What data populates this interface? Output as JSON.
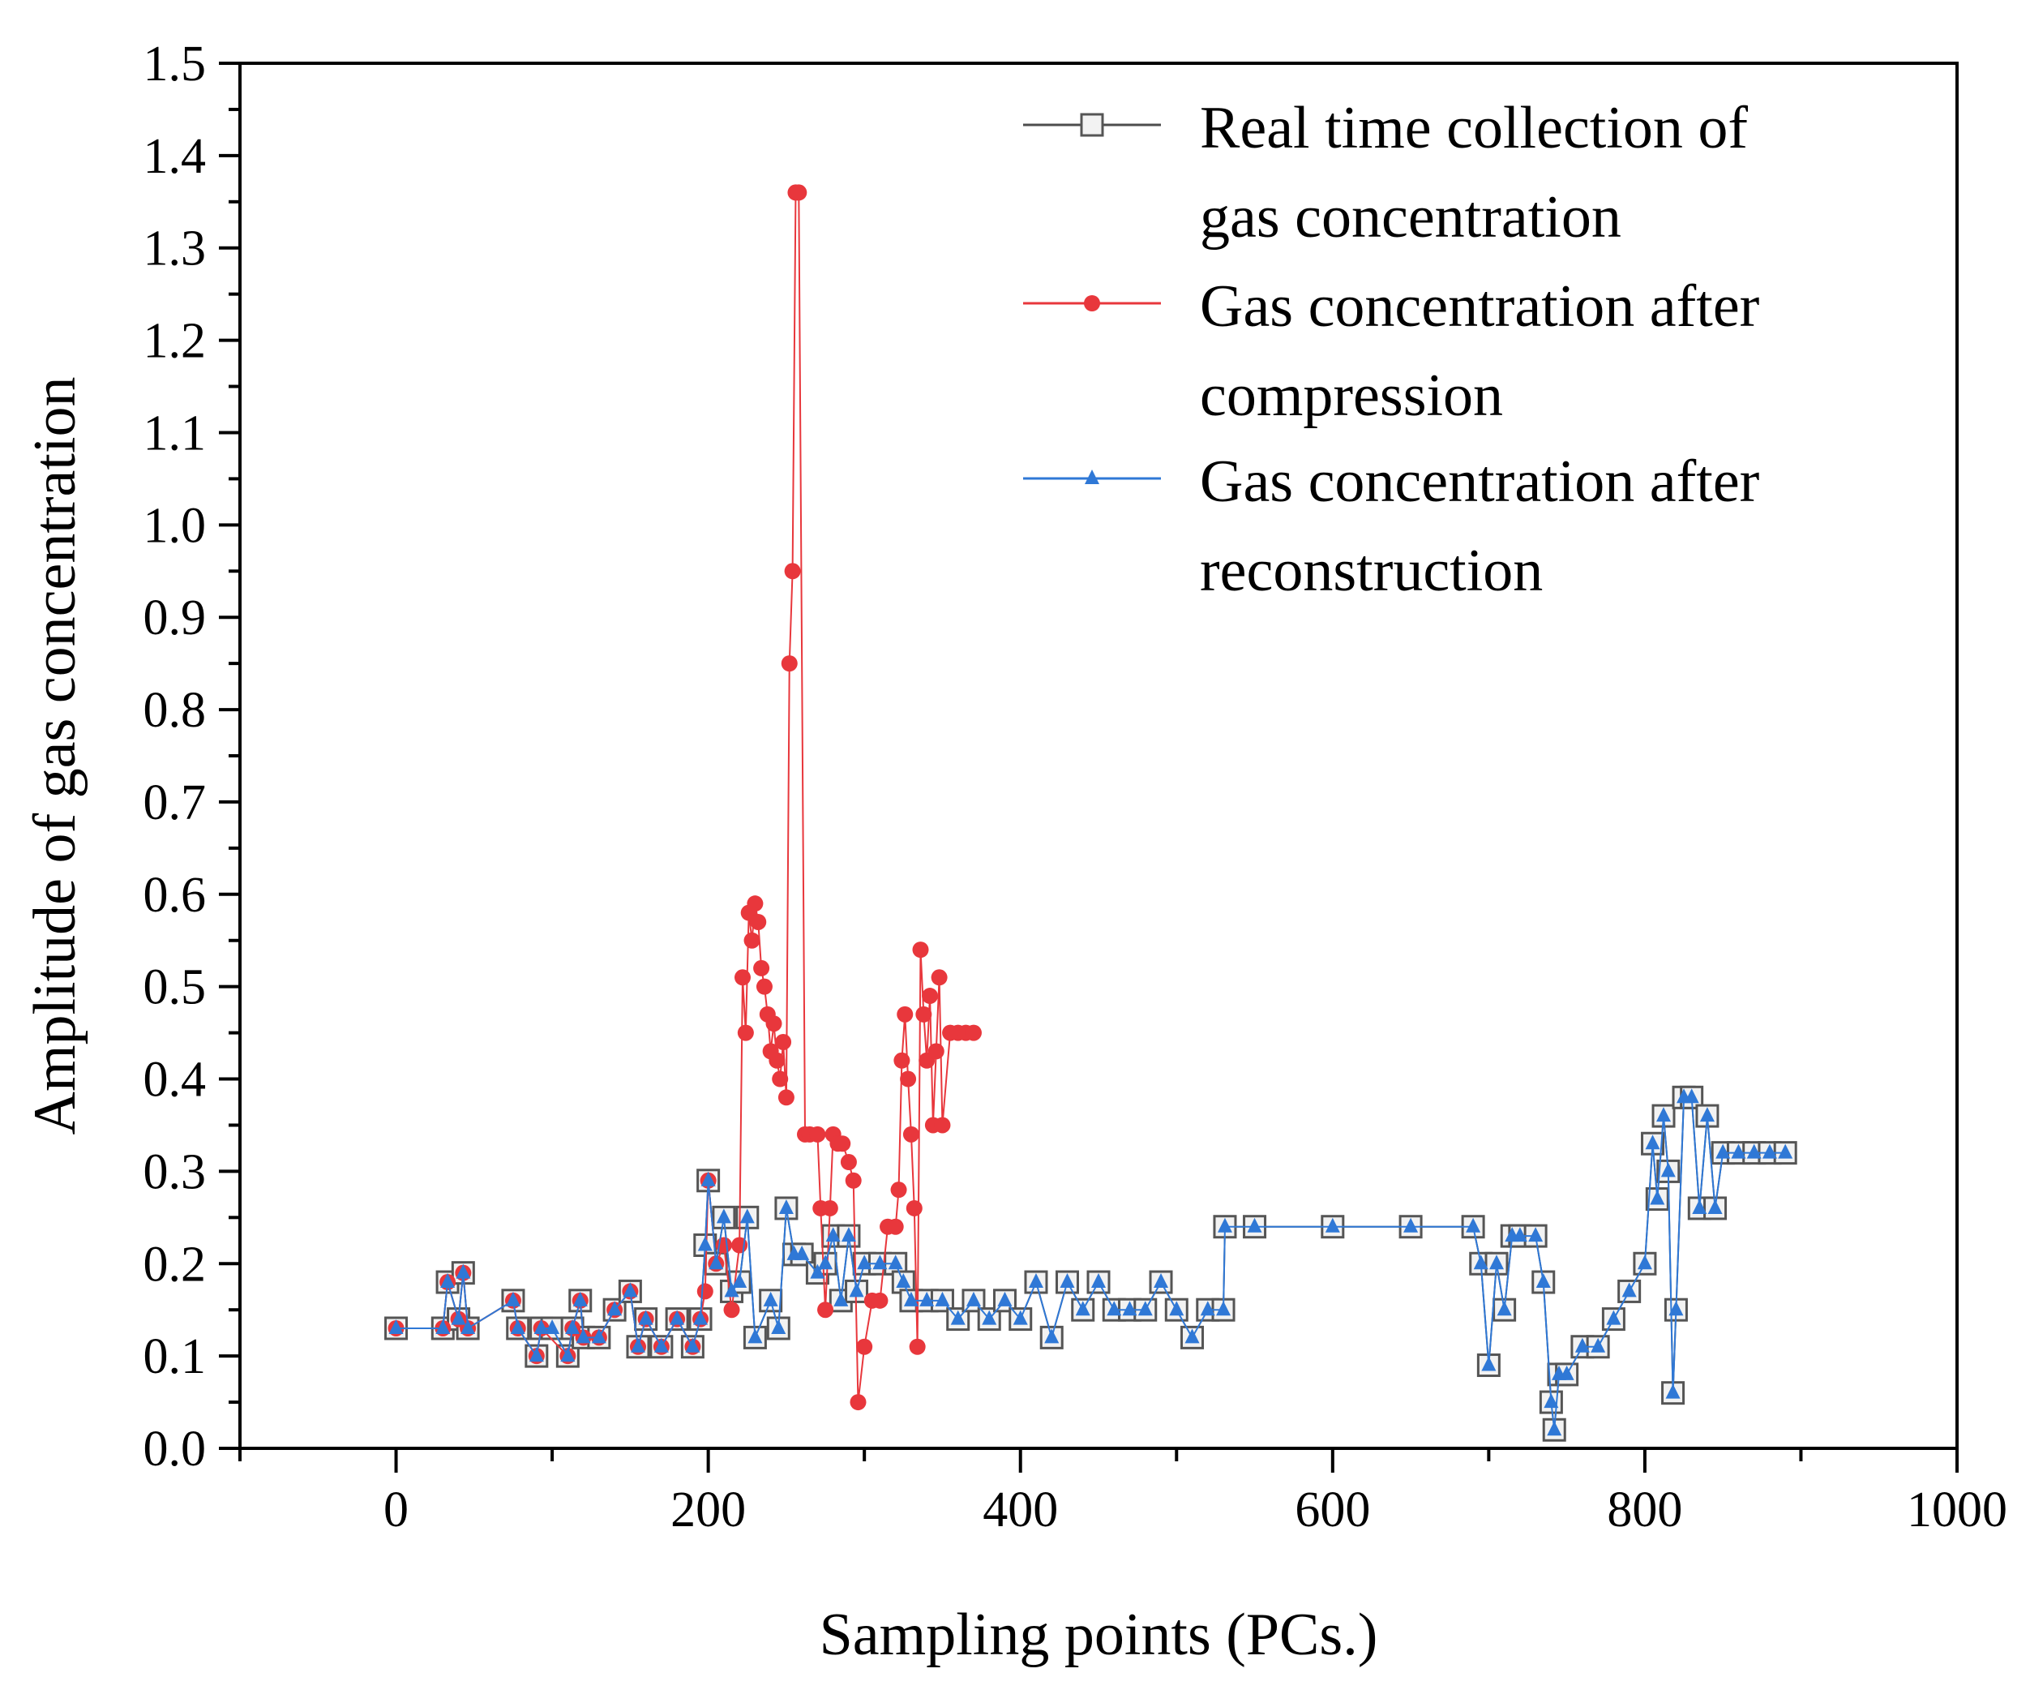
{
  "chart_data": {
    "type": "line",
    "title": "",
    "xlabel": "Sampling points (PCs.)",
    "ylabel": "Amplitude of gas concentration",
    "xlim": [
      -100,
      1000
    ],
    "ylim": [
      0.0,
      1.5
    ],
    "xticks": [
      0,
      200,
      400,
      600,
      800,
      1000
    ],
    "xtick_labels": [
      "0",
      "200",
      "400",
      "600",
      "800",
      "1000"
    ],
    "yticks": [
      0.0,
      0.1,
      0.2,
      0.3,
      0.4,
      0.5,
      0.6,
      0.7,
      0.8,
      0.9,
      1.0,
      1.1,
      1.2,
      1.3,
      1.4,
      1.5
    ],
    "ytick_labels": [
      "0.0",
      "0.1",
      "0.2",
      "0.3",
      "0.4",
      "0.5",
      "0.6",
      "0.7",
      "0.8",
      "0.9",
      "1.0",
      "1.1",
      "1.2",
      "1.3",
      "1.4",
      "1.5"
    ],
    "grid": false,
    "legend_position": "top-right",
    "series": [
      {
        "name": "Real time collection of gas concentration",
        "legend_lines": [
          "Real time collection of",
          "gas concentration"
        ],
        "color": "#4d4d4d",
        "marker": "open-square",
        "x": [
          0,
          30,
          33,
          40,
          43,
          46,
          75,
          78,
          90,
          93,
          100,
          110,
          113,
          118,
          120,
          130,
          140,
          150,
          155,
          160,
          170,
          180,
          190,
          195,
          198,
          200,
          205,
          210,
          215,
          220,
          225,
          230,
          240,
          245,
          250,
          255,
          260,
          270,
          275,
          280,
          285,
          290,
          295,
          300,
          310,
          320,
          325,
          330,
          340,
          350,
          360,
          370,
          380,
          390,
          400,
          410,
          420,
          430,
          440,
          450,
          460,
          470,
          480,
          490,
          500,
          510,
          520,
          530,
          531,
          550,
          600,
          650,
          690,
          695,
          700,
          705,
          710,
          715,
          720,
          730,
          735,
          740,
          742,
          745,
          750,
          760,
          770,
          780,
          790,
          800,
          805,
          808,
          812,
          815,
          818,
          820,
          825,
          830,
          835,
          840,
          845,
          850,
          860,
          870,
          880,
          890
        ],
        "y": [
          0.13,
          0.13,
          0.18,
          0.14,
          0.19,
          0.13,
          0.16,
          0.13,
          0.1,
          0.13,
          0.13,
          0.1,
          0.13,
          0.16,
          0.12,
          0.12,
          0.15,
          0.17,
          0.11,
          0.14,
          0.11,
          0.14,
          0.11,
          0.14,
          0.22,
          0.29,
          0.2,
          0.25,
          0.17,
          0.18,
          0.25,
          0.12,
          0.16,
          0.13,
          0.26,
          0.21,
          0.21,
          0.19,
          0.2,
          0.23,
          0.16,
          0.23,
          0.17,
          0.2,
          0.2,
          0.2,
          0.18,
          0.16,
          0.16,
          0.16,
          0.14,
          0.16,
          0.14,
          0.16,
          0.14,
          0.18,
          0.12,
          0.18,
          0.15,
          0.18,
          0.15,
          0.15,
          0.15,
          0.18,
          0.15,
          0.12,
          0.15,
          0.15,
          0.24,
          0.24,
          0.24,
          0.24,
          0.24,
          0.2,
          0.09,
          0.2,
          0.15,
          0.23,
          0.23,
          0.23,
          0.18,
          0.05,
          0.02,
          0.08,
          0.08,
          0.11,
          0.11,
          0.14,
          0.17,
          0.2,
          0.33,
          0.27,
          0.36,
          0.3,
          0.06,
          0.15,
          0.38,
          0.38,
          0.26,
          0.36,
          0.26,
          0.32,
          0.32,
          0.32,
          0.32,
          0.32
        ]
      },
      {
        "name": "Gas concentration after compression",
        "legend_lines": [
          "Gas concentration after",
          "compression"
        ],
        "color": "#e8373c",
        "marker": "filled-circle",
        "x": [
          0,
          30,
          33,
          40,
          43,
          46,
          75,
          78,
          90,
          93,
          110,
          113,
          118,
          120,
          130,
          140,
          150,
          155,
          160,
          170,
          180,
          190,
          195,
          198,
          200,
          205,
          210,
          215,
          220,
          222,
          224,
          226,
          228,
          230,
          232,
          234,
          236,
          238,
          240,
          242,
          244,
          246,
          248,
          250,
          252,
          254,
          256,
          258,
          262,
          265,
          270,
          272,
          275,
          278,
          280,
          283,
          286,
          290,
          293,
          296,
          300,
          305,
          310,
          315,
          320,
          322,
          324,
          326,
          328,
          330,
          332,
          334,
          336,
          338,
          340,
          342,
          344,
          346,
          348,
          350,
          355,
          360,
          365,
          370
        ],
        "y": [
          0.13,
          0.13,
          0.18,
          0.14,
          0.19,
          0.13,
          0.16,
          0.13,
          0.1,
          0.13,
          0.1,
          0.13,
          0.16,
          0.12,
          0.12,
          0.15,
          0.17,
          0.11,
          0.14,
          0.11,
          0.14,
          0.11,
          0.14,
          0.17,
          0.29,
          0.2,
          0.22,
          0.15,
          0.22,
          0.51,
          0.45,
          0.58,
          0.55,
          0.59,
          0.57,
          0.52,
          0.5,
          0.47,
          0.43,
          0.46,
          0.42,
          0.4,
          0.44,
          0.38,
          0.85,
          0.95,
          1.36,
          1.36,
          0.34,
          0.34,
          0.34,
          0.26,
          0.15,
          0.26,
          0.34,
          0.33,
          0.33,
          0.31,
          0.29,
          0.05,
          0.11,
          0.16,
          0.16,
          0.24,
          0.24,
          0.28,
          0.42,
          0.47,
          0.4,
          0.34,
          0.26,
          0.11,
          0.54,
          0.47,
          0.42,
          0.49,
          0.35,
          0.43,
          0.51,
          0.35,
          0.45,
          0.45,
          0.45,
          0.45
        ]
      },
      {
        "name": "Gas concentration after reconstruction",
        "legend_lines": [
          "Gas concentration after",
          "reconstruction"
        ],
        "color": "#2f78d6",
        "marker": "filled-triangle",
        "x": [
          0,
          30,
          33,
          40,
          43,
          46,
          75,
          78,
          90,
          93,
          100,
          110,
          113,
          118,
          120,
          130,
          140,
          150,
          155,
          160,
          170,
          180,
          190,
          195,
          198,
          200,
          205,
          210,
          215,
          220,
          225,
          230,
          240,
          245,
          250,
          255,
          260,
          270,
          275,
          280,
          285,
          290,
          295,
          300,
          310,
          320,
          325,
          330,
          340,
          350,
          360,
          370,
          380,
          390,
          400,
          410,
          420,
          430,
          440,
          450,
          460,
          470,
          480,
          490,
          500,
          510,
          520,
          530,
          531,
          550,
          600,
          650,
          690,
          695,
          700,
          705,
          710,
          715,
          720,
          730,
          735,
          740,
          742,
          745,
          750,
          760,
          770,
          780,
          790,
          800,
          805,
          808,
          812,
          815,
          818,
          820,
          825,
          830,
          835,
          840,
          845,
          850,
          860,
          870,
          880,
          890
        ],
        "y": [
          0.13,
          0.13,
          0.18,
          0.14,
          0.19,
          0.13,
          0.16,
          0.13,
          0.1,
          0.13,
          0.13,
          0.1,
          0.13,
          0.16,
          0.12,
          0.12,
          0.15,
          0.17,
          0.11,
          0.14,
          0.11,
          0.14,
          0.11,
          0.14,
          0.22,
          0.29,
          0.2,
          0.25,
          0.17,
          0.18,
          0.25,
          0.12,
          0.16,
          0.13,
          0.26,
          0.21,
          0.21,
          0.19,
          0.2,
          0.23,
          0.16,
          0.23,
          0.17,
          0.2,
          0.2,
          0.2,
          0.18,
          0.16,
          0.16,
          0.16,
          0.14,
          0.16,
          0.14,
          0.16,
          0.14,
          0.18,
          0.12,
          0.18,
          0.15,
          0.18,
          0.15,
          0.15,
          0.15,
          0.18,
          0.15,
          0.12,
          0.15,
          0.15,
          0.24,
          0.24,
          0.24,
          0.24,
          0.24,
          0.2,
          0.09,
          0.2,
          0.15,
          0.23,
          0.23,
          0.23,
          0.18,
          0.05,
          0.02,
          0.08,
          0.08,
          0.11,
          0.11,
          0.14,
          0.17,
          0.2,
          0.33,
          0.27,
          0.36,
          0.3,
          0.06,
          0.15,
          0.38,
          0.38,
          0.26,
          0.36,
          0.26,
          0.32,
          0.32,
          0.32,
          0.32,
          0.32
        ]
      }
    ]
  }
}
